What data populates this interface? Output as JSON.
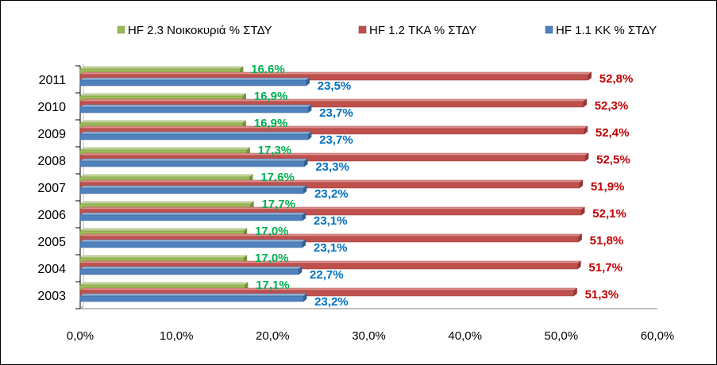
{
  "chart_data": {
    "type": "bar",
    "orientation": "horizontal",
    "three_d": true,
    "categories": [
      "2003",
      "2004",
      "2005",
      "2006",
      "2007",
      "2008",
      "2009",
      "2010",
      "2011"
    ],
    "series": [
      {
        "name": "HF 2.3 Νοικοκυριά % ΣΤΔΥ",
        "color": "#9bbb59",
        "top_color": "#c3d69b",
        "side_color": "#76923c",
        "label_color": "#00b050",
        "values": [
          17.1,
          17.0,
          17.0,
          17.7,
          17.6,
          17.3,
          16.9,
          16.9,
          16.6
        ],
        "labels": [
          "17,1%",
          "17,0%",
          "17,0%",
          "17,7%",
          "17,6%",
          "17,3%",
          "16,9%",
          "16,9%",
          "16.6%"
        ]
      },
      {
        "name": "HF 1.2 ΤΚΑ % ΣΤΔΥ",
        "color": "#c0504d",
        "top_color": "#e0908e",
        "side_color": "#943634",
        "label_color": "#c00000",
        "values": [
          51.3,
          51.7,
          51.8,
          52.1,
          51.9,
          52.5,
          52.4,
          52.3,
          52.8
        ],
        "labels": [
          "51,3%",
          "51,7%",
          "51,8%",
          "52,1%",
          "51,9%",
          "52,5%",
          "52,4%",
          "52,3%",
          "52,8%"
        ]
      },
      {
        "name": "HF 1.1 ΚΚ % ΣΤΔΥ",
        "color": "#4f81bd",
        "top_color": "#95b3d7",
        "side_color": "#365f91",
        "label_color": "#0070c0",
        "values": [
          23.2,
          22.7,
          23.1,
          23.1,
          23.2,
          23.3,
          23.7,
          23.7,
          23.5
        ],
        "labels": [
          "23,2%",
          "22,7%",
          "23,1%",
          "23,1%",
          "23,2%",
          "23,3%",
          "23,7%",
          "23,7%",
          "23,5%"
        ]
      }
    ],
    "xlim": [
      0,
      60
    ],
    "x_ticks": [
      "0,0%",
      "10,0%",
      "20,0%",
      "30,0%",
      "40,0%",
      "50,0%",
      "60,0%"
    ],
    "grid": false,
    "legend": "top"
  }
}
